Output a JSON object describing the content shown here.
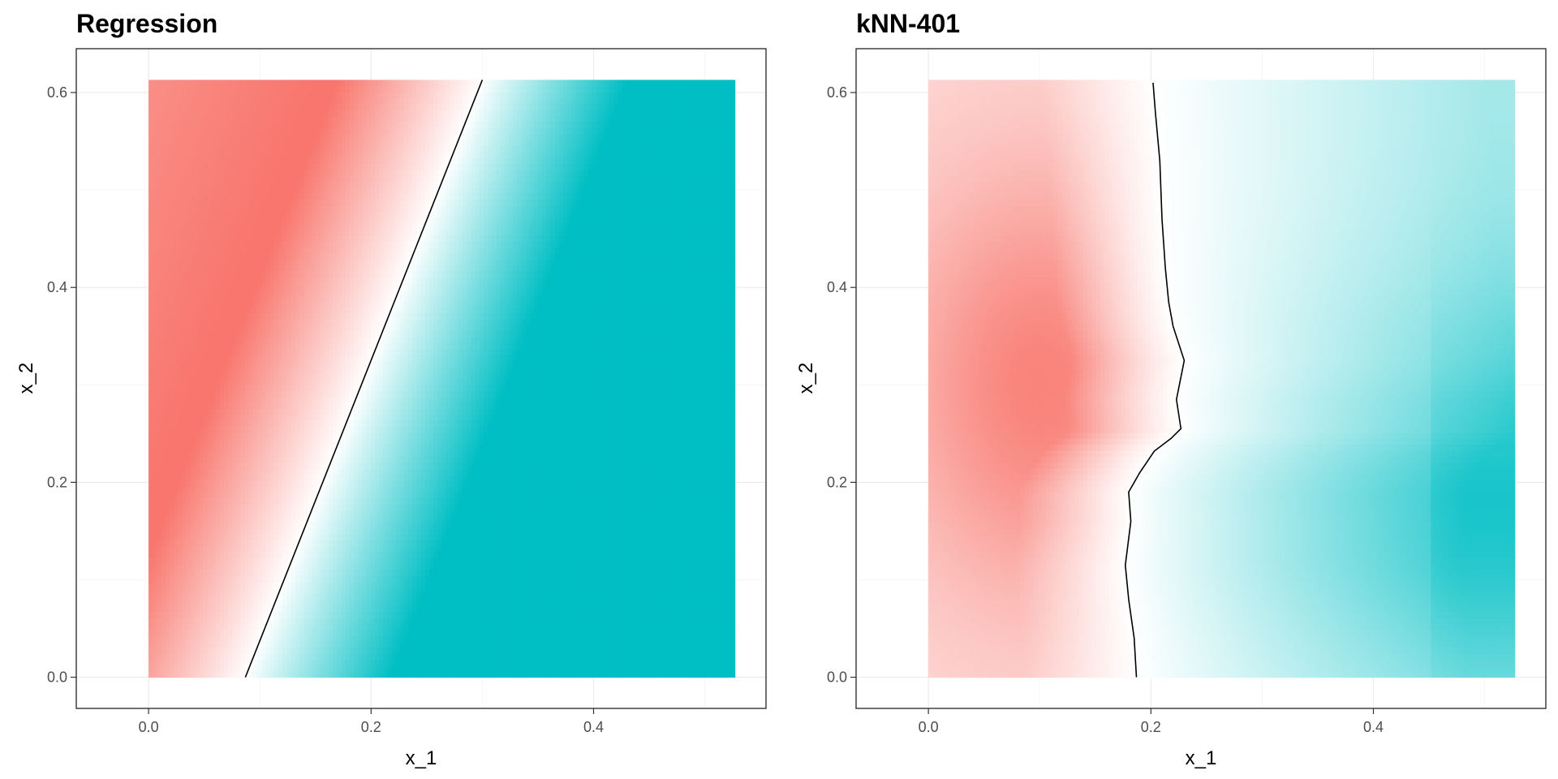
{
  "chart_data": [
    {
      "type": "heatmap",
      "title": "Regression",
      "xlabel": "x_1",
      "ylabel": "x_2",
      "xlim": [
        -0.065,
        0.555
      ],
      "ylim": [
        -0.032,
        0.645
      ],
      "x_ticks": [
        0.0,
        0.2,
        0.4
      ],
      "x_tick_labels": [
        "0.0",
        "0.2",
        "0.4"
      ],
      "y_ticks": [
        0.0,
        0.2,
        0.4,
        0.6
      ],
      "y_tick_labels": [
        "0.0",
        "0.2",
        "0.4",
        "0.6"
      ],
      "fill_extent": {
        "x": [
          0.0,
          0.527
        ],
        "y": [
          0.0,
          0.613
        ]
      },
      "colors": {
        "class_a": "#F8766D",
        "mid": "#FFFFFF",
        "class_b": "#00BFC4"
      },
      "boundary": [
        [
          0.087,
          0.0
        ],
        [
          0.3,
          0.613
        ]
      ]
    },
    {
      "type": "heatmap",
      "title": "kNN-401",
      "xlabel": "x_1",
      "ylabel": "x_2",
      "xlim": [
        -0.065,
        0.555
      ],
      "ylim": [
        -0.032,
        0.645
      ],
      "x_ticks": [
        0.0,
        0.2,
        0.4
      ],
      "x_tick_labels": [
        "0.0",
        "0.2",
        "0.4"
      ],
      "y_ticks": [
        0.0,
        0.2,
        0.4,
        0.6
      ],
      "y_tick_labels": [
        "0.0",
        "0.2",
        "0.4",
        "0.6"
      ],
      "fill_extent": {
        "x": [
          0.0,
          0.527
        ],
        "y": [
          0.0,
          0.613
        ]
      },
      "colors": {
        "class_a": "#F8766D",
        "mid": "#FFFFFF",
        "class_b": "#00BFC4"
      },
      "boundary": [
        [
          0.187,
          0.0
        ],
        [
          0.185,
          0.04
        ],
        [
          0.18,
          0.08
        ],
        [
          0.177,
          0.115
        ],
        [
          0.182,
          0.16
        ],
        [
          0.18,
          0.19
        ],
        [
          0.19,
          0.21
        ],
        [
          0.203,
          0.232
        ],
        [
          0.218,
          0.245
        ],
        [
          0.227,
          0.255
        ],
        [
          0.223,
          0.285
        ],
        [
          0.23,
          0.325
        ],
        [
          0.22,
          0.36
        ],
        [
          0.216,
          0.385
        ],
        [
          0.213,
          0.42
        ],
        [
          0.21,
          0.47
        ],
        [
          0.208,
          0.53
        ],
        [
          0.204,
          0.58
        ],
        [
          0.202,
          0.61
        ]
      ]
    }
  ]
}
